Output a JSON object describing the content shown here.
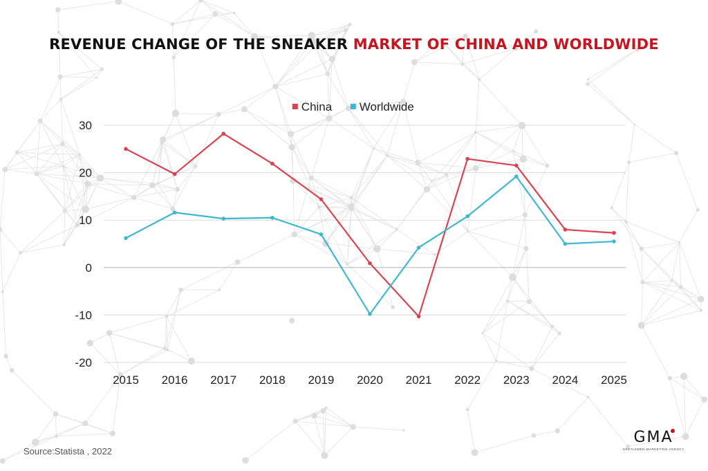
{
  "title": {
    "part_a": "REVENUE CHANGE OF THE SNEAKER ",
    "part_b": "MARKET OF CHINA AND WORLDWIDE"
  },
  "source": "Source:Statista , 2022",
  "logo": {
    "mark": "GMA",
    "subtitle": "GENTLEMEN MARKETING AGENCY"
  },
  "colors": {
    "china": "#d9434f",
    "worldwide": "#3fb7cf",
    "title_accent": "#c8141e"
  },
  "chart_data": {
    "type": "line",
    "title": "REVENUE CHANGE OF THE SNEAKER MARKET OF CHINA AND WORLDWIDE",
    "categories": [
      "2015",
      "2016",
      "2017",
      "2018",
      "2019",
      "2020",
      "2021",
      "2022",
      "2023",
      "2024",
      "2025"
    ],
    "series": [
      {
        "name": "China",
        "color": "#d9434f",
        "values": [
          25,
          19.7,
          28.2,
          21.9,
          14.4,
          0.9,
          -10.3,
          22.9,
          21.5,
          8,
          7.3
        ]
      },
      {
        "name": "Worldwide",
        "color": "#3fb7cf",
        "values": [
          6.2,
          11.6,
          10.3,
          10.5,
          7,
          -9.8,
          4.2,
          10.8,
          19.2,
          5,
          5.5
        ]
      }
    ],
    "ylim": [
      -20,
      30
    ],
    "yticks": [
      "30",
      "20",
      "10",
      "0",
      "-10",
      "-20"
    ],
    "ytick_values": [
      30,
      20,
      10,
      0,
      -10,
      -20
    ],
    "grid": true,
    "legend": "top-center",
    "xlabel": "",
    "ylabel": ""
  }
}
